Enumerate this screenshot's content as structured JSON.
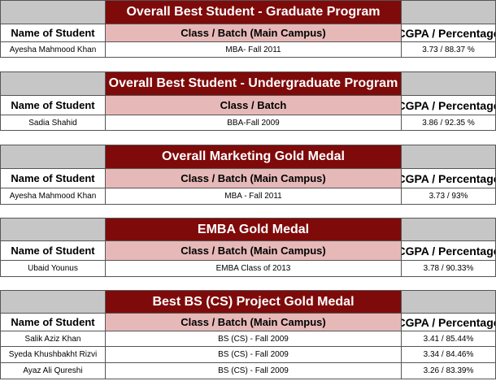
{
  "awards": [
    {
      "title": "Overall Best Student - Graduate Program",
      "headers": [
        "Name of Student",
        "Class / Batch (Main Campus)",
        "CGPA / Percentage"
      ],
      "rows": [
        [
          "Ayesha Mahmood Khan",
          "MBA- Fall 2011",
          "3.73 / 88.37 %"
        ]
      ]
    },
    {
      "title": "Overall Best Student - Undergraduate Program",
      "headers": [
        "Name of Student",
        "Class / Batch",
        "CGPA / Percentage"
      ],
      "rows": [
        [
          "Sadia Shahid",
          "BBA-Fall 2009",
          "3.86  / 92.35 %"
        ]
      ]
    },
    {
      "title": "Overall Marketing Gold Medal",
      "headers": [
        "Name of Student",
        "Class / Batch (Main Campus)",
        "CGPA / Percentage"
      ],
      "rows": [
        [
          "Ayesha Mahmood Khan",
          "MBA -  Fall 2011",
          "3.73  /  93%"
        ]
      ]
    },
    {
      "title": "EMBA Gold Medal",
      "headers": [
        "Name of Student",
        "Class / Batch (Main Campus)",
        "CGPA / Percentage"
      ],
      "rows": [
        [
          "Ubaid Younus",
          "EMBA Class of 2013",
          "3.78 / 90.33%"
        ]
      ]
    },
    {
      "title": "Best BS (CS) Project Gold Medal",
      "headers": [
        "Name of Student",
        "Class / Batch (Main Campus)",
        "CGPA / Percentage"
      ],
      "rows": [
        [
          "Salik Aziz Khan",
          "BS (CS) - Fall 2009",
          "3.41 / 85.44%"
        ],
        [
          "Syeda Khushbakht Rizvi",
          "BS (CS) - Fall 2009",
          "3.34 / 84.46%"
        ],
        [
          "Ayaz Ali Qureshi",
          "BS (CS) - Fall 2009",
          "3.26 / 83.39%"
        ]
      ]
    }
  ],
  "colors": {
    "title_bg": "#7f0a0a",
    "title_text": "#ffffff",
    "header_class_bg": "#e6b9b8",
    "side_bg": "#c6c6c6"
  }
}
